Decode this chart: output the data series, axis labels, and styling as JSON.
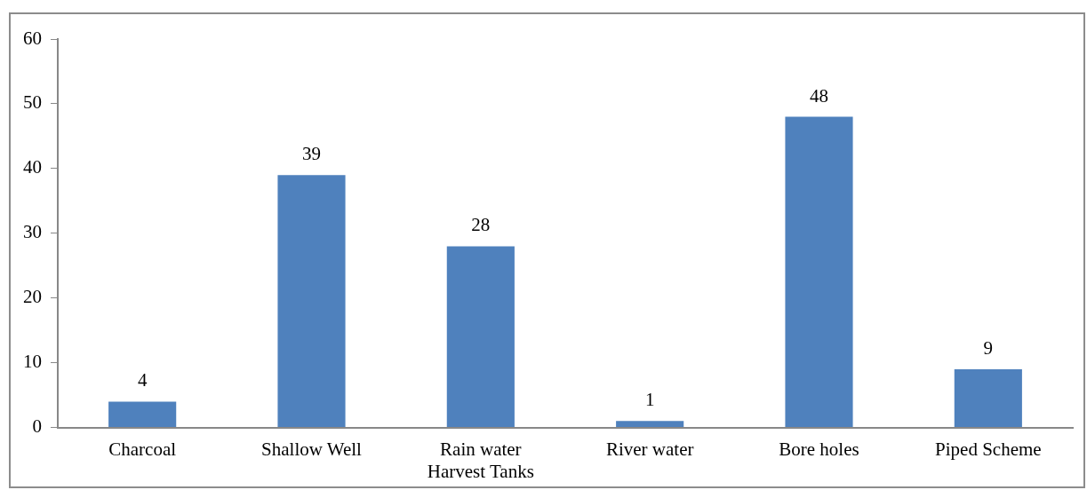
{
  "chart_data": {
    "type": "bar",
    "categories": [
      "Charcoal",
      "Shallow Well",
      "Rain water Harvest Tanks",
      "River water",
      "Bore holes",
      "Piped Scheme"
    ],
    "values": [
      4,
      39,
      28,
      1,
      48,
      9
    ],
    "color": "#4f81bd",
    "ylim": [
      0,
      60
    ],
    "yticks": [
      0,
      10,
      20,
      30,
      40,
      50,
      60
    ],
    "grid": false,
    "legend": false,
    "data_labels": true
  }
}
